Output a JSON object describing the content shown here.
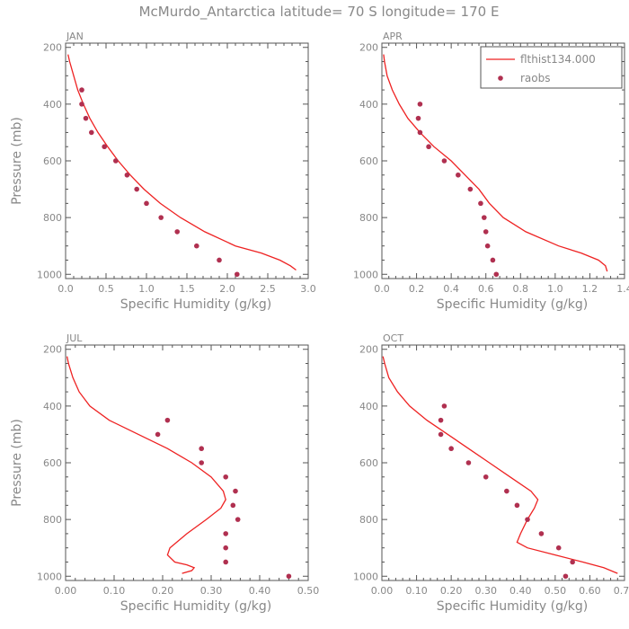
{
  "title": "McMurdo_Antarctica  latitude= 70 S longitude= 170 E",
  "colors": {
    "model": "#ee2222",
    "obs": "#b03050",
    "axis": "#555555",
    "text": "#888888"
  },
  "legend": {
    "model_label": "flthist134.000",
    "obs_label": "raobs"
  },
  "chart_data": [
    {
      "type": "line",
      "panel": "JAN",
      "xlabel": "Specific Humidity (g/kg)",
      "ylabel": "Pressure (mb)",
      "xlim": [
        0,
        3.0
      ],
      "ylim": [
        200,
        1000
      ],
      "xticks": [
        "0.0",
        "0.5",
        "1.0",
        "1.5",
        "2.0",
        "2.5",
        "3.0"
      ],
      "xtick_values": [
        0,
        0.5,
        1.0,
        1.5,
        2.0,
        2.5,
        3.0
      ],
      "yticks": [
        "200",
        "400",
        "600",
        "800",
        "1000"
      ],
      "model": {
        "name": "flthist134.000",
        "pressure": [
          225,
          250,
          300,
          350,
          400,
          450,
          500,
          550,
          600,
          650,
          700,
          750,
          800,
          850,
          900,
          925,
          950,
          970,
          985
        ],
        "values": [
          0.03,
          0.05,
          0.1,
          0.15,
          0.22,
          0.3,
          0.4,
          0.52,
          0.65,
          0.8,
          0.97,
          1.17,
          1.42,
          1.72,
          2.1,
          2.42,
          2.65,
          2.78,
          2.85
        ]
      },
      "obs": {
        "name": "raobs",
        "pressure": [
          350,
          400,
          450,
          500,
          550,
          600,
          650,
          700,
          750,
          800,
          850,
          900,
          950,
          1000
        ],
        "values": [
          0.2,
          0.2,
          0.25,
          0.32,
          0.48,
          0.62,
          0.76,
          0.88,
          1.0,
          1.18,
          1.38,
          1.62,
          1.9,
          2.12
        ]
      }
    },
    {
      "type": "line",
      "panel": "APR",
      "xlabel": "Specific Humidity (g/kg)",
      "ylabel": "",
      "xlim": [
        0,
        1.4
      ],
      "ylim": [
        200,
        1000
      ],
      "xticks": [
        "0.0",
        "0.2",
        "0.4",
        "0.6",
        "0.8",
        "1.0",
        "1.2",
        "1.4"
      ],
      "xtick_values": [
        0,
        0.2,
        0.4,
        0.6,
        0.8,
        1.0,
        1.2,
        1.4
      ],
      "yticks": [
        "200",
        "400",
        "600",
        "800",
        "1000"
      ],
      "legend": true,
      "model": {
        "name": "flthist134.000",
        "pressure": [
          225,
          250,
          300,
          350,
          400,
          450,
          500,
          550,
          600,
          650,
          700,
          750,
          800,
          850,
          900,
          925,
          950,
          970,
          990
        ],
        "values": [
          0.01,
          0.015,
          0.03,
          0.06,
          0.1,
          0.15,
          0.22,
          0.3,
          0.4,
          0.48,
          0.56,
          0.62,
          0.7,
          0.83,
          1.02,
          1.15,
          1.25,
          1.29,
          1.3
        ]
      },
      "obs": {
        "name": "raobs",
        "pressure": [
          400,
          450,
          500,
          550,
          600,
          650,
          700,
          750,
          800,
          850,
          900,
          950,
          1000
        ],
        "values": [
          0.22,
          0.21,
          0.22,
          0.27,
          0.36,
          0.44,
          0.51,
          0.57,
          0.59,
          0.6,
          0.61,
          0.64,
          0.66
        ]
      }
    },
    {
      "type": "line",
      "panel": "JUL",
      "xlabel": "Specific Humidity (g/kg)",
      "ylabel": "Pressure (mb)",
      "xlim": [
        0,
        0.5
      ],
      "ylim": [
        200,
        1000
      ],
      "xticks": [
        "0.00",
        "0.10",
        "0.20",
        "0.30",
        "0.40",
        "0.50"
      ],
      "xtick_values": [
        0,
        0.1,
        0.2,
        0.3,
        0.4,
        0.5
      ],
      "yticks": [
        "200",
        "400",
        "600",
        "800",
        "1000"
      ],
      "model": {
        "name": "flthist134.000",
        "pressure": [
          225,
          250,
          300,
          350,
          400,
          450,
          500,
          550,
          600,
          650,
          700,
          730,
          760,
          800,
          850,
          900,
          925,
          950,
          960,
          970,
          980,
          990
        ],
        "values": [
          0.003,
          0.006,
          0.015,
          0.028,
          0.05,
          0.09,
          0.15,
          0.21,
          0.26,
          0.3,
          0.325,
          0.33,
          0.32,
          0.29,
          0.25,
          0.215,
          0.21,
          0.225,
          0.25,
          0.265,
          0.26,
          0.24
        ]
      },
      "obs": {
        "name": "raobs",
        "pressure": [
          450,
          500,
          550,
          600,
          650,
          700,
          750,
          800,
          850,
          900,
          950,
          1000
        ],
        "values": [
          0.21,
          0.19,
          0.28,
          0.28,
          0.33,
          0.35,
          0.345,
          0.355,
          0.33,
          0.33,
          0.33,
          0.46
        ]
      }
    },
    {
      "type": "line",
      "panel": "OCT",
      "xlabel": "Specific Humidity (g/kg)",
      "ylabel": "",
      "xlim": [
        0,
        0.7
      ],
      "ylim": [
        200,
        1000
      ],
      "xticks": [
        "0.00",
        "0.10",
        "0.20",
        "0.30",
        "0.40",
        "0.50",
        "0.60",
        "0.70"
      ],
      "xtick_values": [
        0,
        0.1,
        0.2,
        0.3,
        0.4,
        0.5,
        0.6,
        0.7
      ],
      "yticks": [
        "200",
        "400",
        "600",
        "800",
        "1000"
      ],
      "model": {
        "name": "flthist134.000",
        "pressure": [
          225,
          250,
          300,
          350,
          400,
          450,
          500,
          550,
          600,
          650,
          700,
          730,
          760,
          800,
          850,
          880,
          900,
          925,
          950,
          970,
          990
        ],
        "values": [
          0.003,
          0.008,
          0.02,
          0.045,
          0.08,
          0.13,
          0.19,
          0.25,
          0.31,
          0.37,
          0.43,
          0.45,
          0.44,
          0.42,
          0.4,
          0.39,
          0.42,
          0.5,
          0.58,
          0.64,
          0.68
        ]
      },
      "obs": {
        "name": "raobs",
        "pressure": [
          400,
          450,
          500,
          550,
          600,
          650,
          700,
          750,
          800,
          850,
          900,
          950,
          1000
        ],
        "values": [
          0.18,
          0.17,
          0.17,
          0.2,
          0.25,
          0.3,
          0.36,
          0.39,
          0.42,
          0.46,
          0.51,
          0.55,
          0.53
        ]
      }
    }
  ]
}
